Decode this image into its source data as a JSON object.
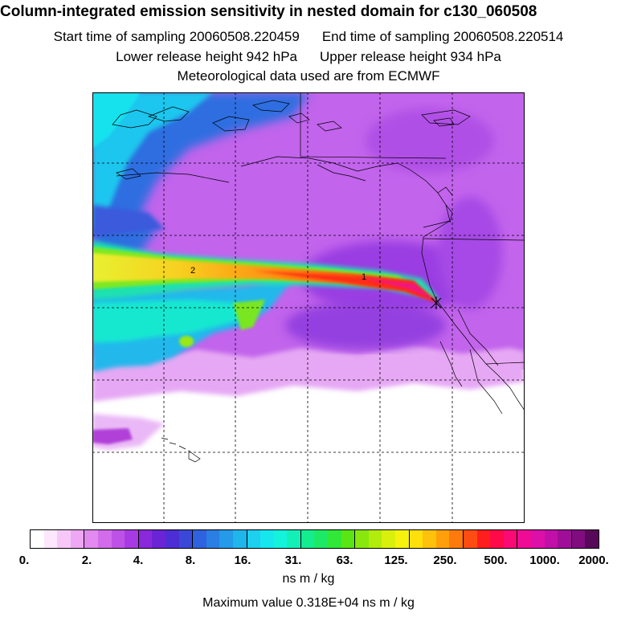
{
  "header": {
    "title": "Column-integrated emission sensitivity in nested domain for c130_060508",
    "start_label": "Start time of sampling 20060508.220459",
    "end_label": "End time of sampling 20060508.220514",
    "lower_label": "Lower release height  942 hPa",
    "upper_label": "Upper release height  934 hPa",
    "met_label": "Meteorological data used are from ECMWF"
  },
  "map": {
    "markers": [
      "2",
      "1"
    ]
  },
  "colorbar": {
    "ticks": [
      "0.",
      "2.",
      "4.",
      "8.",
      "16.",
      "31.",
      "63.",
      "125.",
      "250.",
      "500.",
      "1000.",
      "2000."
    ],
    "colors": [
      "#ffffff",
      "#fde7fd",
      "#f7c8f7",
      "#eea7f3",
      "#e28aef",
      "#d26ceb",
      "#bf52e6",
      "#a83ae3",
      "#8a28dc",
      "#6a24d6",
      "#4c2ed4",
      "#3a48d8",
      "#2f62de",
      "#2a7ee4",
      "#249ae8",
      "#1fb6ec",
      "#1cd0ee",
      "#18e6ee",
      "#14f2dc",
      "#12f0b8",
      "#14ec90",
      "#1cea66",
      "#30e838",
      "#5ae614",
      "#88e80e",
      "#b2ec0c",
      "#d8f00c",
      "#f6f20e",
      "#ffdf0c",
      "#ffc20a",
      "#ffa00a",
      "#ff7a0c",
      "#ff4c12",
      "#ff1e1e",
      "#ff0a48",
      "#fa0a74",
      "#ee0c96",
      "#dc10a8",
      "#c010a8",
      "#a00e98",
      "#800c80",
      "#580858"
    ],
    "units": "ns m / kg",
    "max_label": "Maximum value  0.318E+04 ns m / kg"
  }
}
